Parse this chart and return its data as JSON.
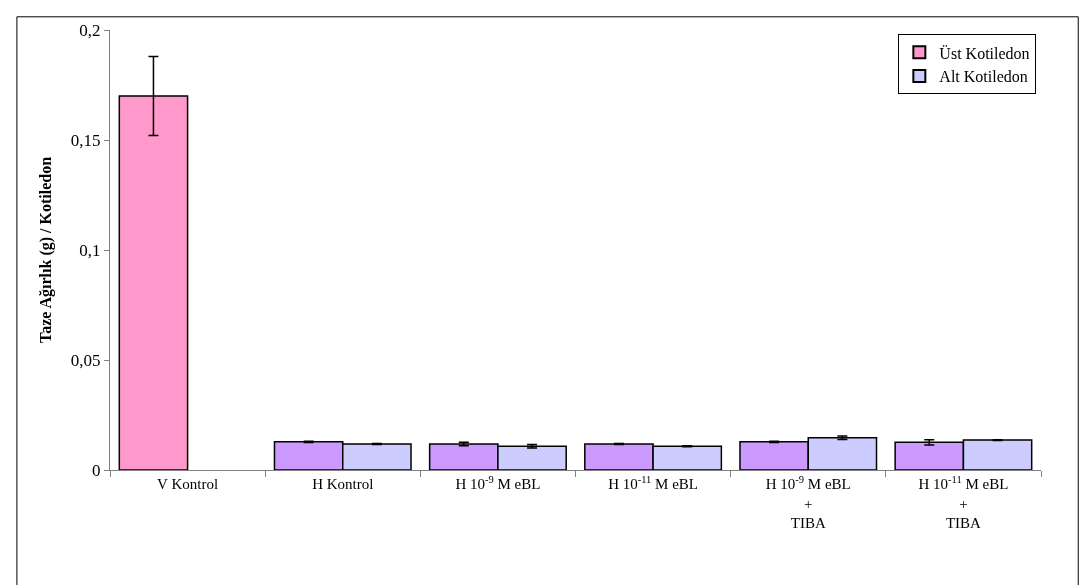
{
  "chart_data": {
    "type": "bar",
    "ylabel": "Taze Ağırlık (g) / Kotiledon",
    "categories": [
      "V Kontrol",
      "H Kontrol",
      "H 10$^{-9}$ M eBL",
      "H 10$^{-11}$ M eBL",
      "H 10$^{-9}$ M eBL\n+\nTIBA",
      "H 10$^{-11}$ M eBL\n+\nTIBA"
    ],
    "series": [
      {
        "name": "Üst Kotiledon",
        "color": "#cc99ff",
        "colors": [
          "#ff99cc",
          "#cc99ff",
          "#cc99ff",
          "#cc99ff",
          "#cc99ff",
          "#cc99ff"
        ],
        "values": [
          0.17,
          0.0128,
          0.0118,
          0.0118,
          0.0128,
          0.0126
        ],
        "errors": [
          0.018,
          0.0003,
          0.0008,
          0.0002,
          0.0003,
          0.0012
        ]
      },
      {
        "name": "Alt Kotiledon",
        "color": "#ccccff",
        "values": [
          null,
          0.0118,
          0.0108,
          0.0108,
          0.0147,
          0.0136
        ],
        "errors": [
          null,
          0.0002,
          0.0008,
          0.0002,
          0.0008,
          0.0002
        ]
      }
    ],
    "ylim": [
      0,
      0.2
    ],
    "yticks": [
      {
        "value": 0,
        "label": "0"
      },
      {
        "value": 0.05,
        "label": "0,05"
      },
      {
        "value": 0.1,
        "label": "0,1"
      },
      {
        "value": 0.15,
        "label": "0,15"
      },
      {
        "value": 0.2,
        "label": "0,2"
      }
    ],
    "legend": "top right"
  }
}
